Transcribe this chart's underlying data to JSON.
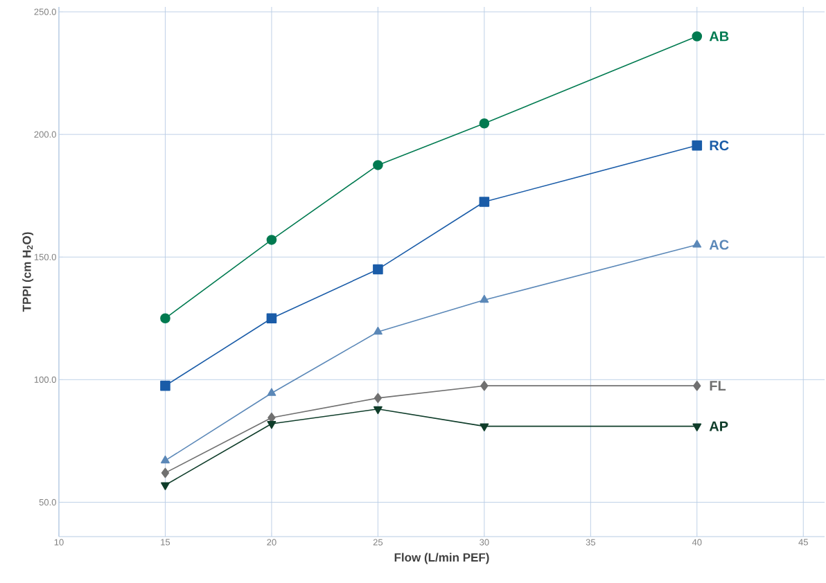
{
  "chart_data": {
    "type": "line",
    "xlabel": "Flow (L/min PEF)",
    "ylabel": "TPPI (cm H$_{2}$O)",
    "x": [
      15,
      20,
      25,
      30,
      40
    ],
    "series": [
      {
        "name": "AB",
        "color": "#007a50",
        "marker": "circle",
        "values": [
          125,
          157,
          187.5,
          204.5,
          240
        ]
      },
      {
        "name": "RC",
        "color": "#1a5ca8",
        "marker": "square",
        "values": [
          97.5,
          125,
          145,
          172.5,
          195.5
        ]
      },
      {
        "name": "AC",
        "color": "#5b88b8",
        "marker": "triangle",
        "values": [
          67,
          94.5,
          119.5,
          132.5,
          155
        ]
      },
      {
        "name": "FL",
        "color": "#707070",
        "marker": "diamond",
        "values": [
          62,
          84.5,
          92.5,
          97.5,
          97.5
        ]
      },
      {
        "name": "AP",
        "color": "#0f3d2a",
        "marker": "triangle-down",
        "values": [
          57,
          82,
          88,
          81,
          81
        ]
      }
    ],
    "xlim": [
      10,
      46
    ],
    "ylim": [
      36,
      252
    ],
    "xticks": [
      10,
      15,
      20,
      25,
      30,
      35,
      40,
      45
    ],
    "yticks": [
      {
        "value": 50,
        "label": "50.0"
      },
      {
        "value": 100,
        "label": "100.0"
      },
      {
        "value": 150,
        "label": "150.0"
      },
      {
        "value": 200,
        "label": "200.0"
      },
      {
        "value": 250,
        "label": "250.0"
      }
    ],
    "grid": true,
    "legend": false,
    "line_style": "solid"
  }
}
